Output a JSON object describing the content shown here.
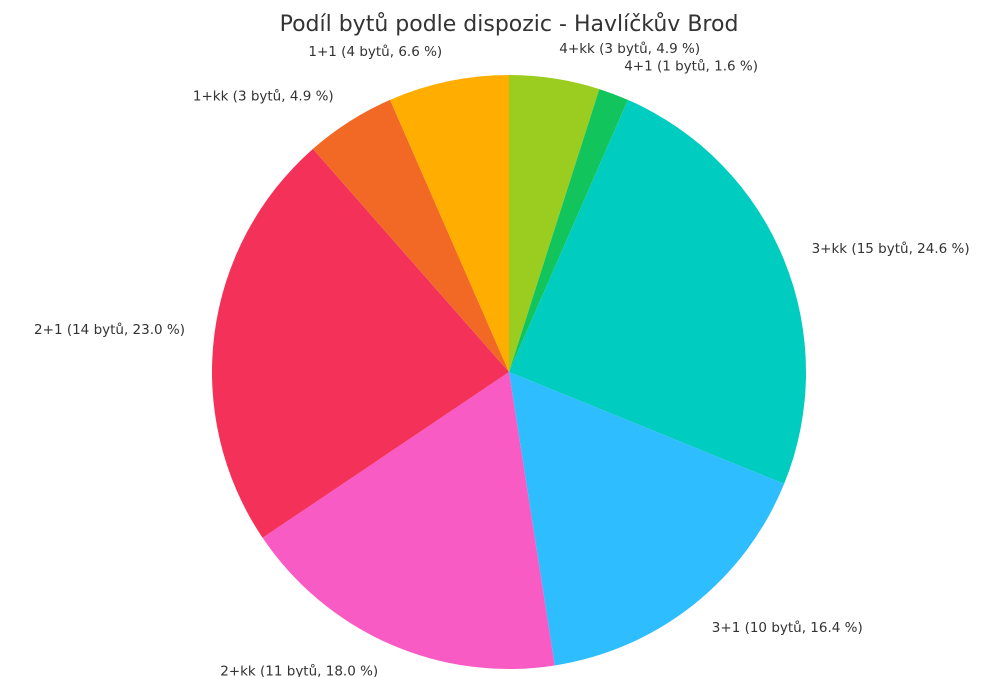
{
  "chart_data": {
    "type": "pie",
    "title": "Podíl bytů podle dispozic - Havlíčkův Brod",
    "start_angle_deg": 90,
    "direction": "clockwise",
    "slices": [
      {
        "category": "4+kk",
        "count": 3,
        "percent": 4.9,
        "label": "4+kk (3 bytů, 4.9 %)",
        "color": "#9ACD1F"
      },
      {
        "category": "4+1",
        "count": 1,
        "percent": 1.6,
        "label": "4+1 (1 bytů, 1.6 %)",
        "color": "#12C45C"
      },
      {
        "category": "3+kk",
        "count": 15,
        "percent": 24.6,
        "label": "3+kk (15 bytů, 24.6 %)",
        "color": "#00CCC0"
      },
      {
        "category": "3+1",
        "count": 10,
        "percent": 16.4,
        "label": "3+1 (10 bytů, 16.4 %)",
        "color": "#2EBDFF"
      },
      {
        "category": "2+kk",
        "count": 11,
        "percent": 18.0,
        "label": "2+kk (11 bytů, 18.0 %)",
        "color": "#F95BC5"
      },
      {
        "category": "2+1",
        "count": 14,
        "percent": 23.0,
        "label": "2+1 (14 bytů, 23.0 %)",
        "color": "#F43158"
      },
      {
        "category": "1+kk",
        "count": 3,
        "percent": 4.9,
        "label": "1+kk (3 bytů, 4.9 %)",
        "color": "#F26825"
      },
      {
        "category": "1+1",
        "count": 4,
        "percent": 6.6,
        "label": "1+1 (4 bytů, 6.6 %)",
        "color": "#FFAE00"
      }
    ]
  }
}
